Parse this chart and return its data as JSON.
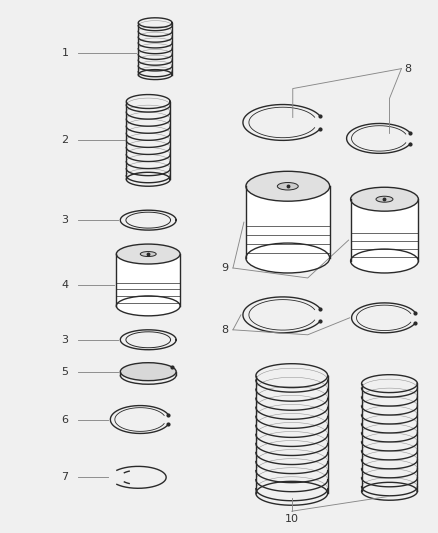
{
  "background_color": "#f0f0f0",
  "line_color": "#2a2a2a",
  "label_color": "#444444",
  "figsize": [
    4.39,
    5.33
  ],
  "dpi": 100,
  "white": "#ffffff",
  "gray_fill": "#e8e8e8",
  "medium_gray": "#c0c0c0"
}
